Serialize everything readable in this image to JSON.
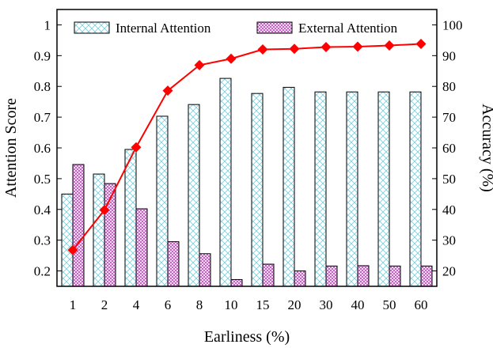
{
  "chart_data": {
    "type": "bar",
    "title": "",
    "xlabel": "Earliness (%)",
    "ylabel": "Attention Score",
    "y2label": "Accuracy (%)",
    "categories": [
      "1",
      "2",
      "4",
      "6",
      "8",
      "10",
      "15",
      "20",
      "30",
      "40",
      "50",
      "60"
    ],
    "ylim": [
      0.15,
      1.05
    ],
    "yticks": [
      0.2,
      0.3,
      0.4,
      0.5,
      0.6,
      0.7,
      0.8,
      0.9,
      1
    ],
    "ytick_labels": [
      "0.2",
      "0.3",
      "0.4",
      "0.5",
      "0.6",
      "0.7",
      "0.8",
      "0.9",
      "1"
    ],
    "y2lim": [
      15,
      105
    ],
    "y2ticks": [
      20,
      30,
      40,
      50,
      60,
      70,
      80,
      90,
      100
    ],
    "y2tick_labels": [
      "20",
      "30",
      "40",
      "50",
      "60",
      "70",
      "80",
      "90",
      "100"
    ],
    "legend_position": "top",
    "grid": false,
    "series": [
      {
        "name": "Internal Attention",
        "kind": "bar",
        "axis": "left",
        "pattern": "diagonal-cross",
        "color": "#7ecfe0",
        "values": [
          0.45,
          0.515,
          0.595,
          0.703,
          0.741,
          0.826,
          0.777,
          0.797,
          0.782,
          0.782,
          0.782,
          0.782
        ]
      },
      {
        "name": "External Attention",
        "kind": "bar",
        "axis": "left",
        "pattern": "fine-crosshatch",
        "color": "#c040c0",
        "values": [
          0.546,
          0.484,
          0.402,
          0.295,
          0.256,
          0.172,
          0.222,
          0.2,
          0.216,
          0.217,
          0.216,
          0.216
        ]
      },
      {
        "name": "",
        "kind": "line",
        "axis": "right",
        "marker": "diamond",
        "color": "#ff0000",
        "values": [
          26.8,
          39.8,
          60.2,
          78.6,
          86.9,
          89.0,
          92.0,
          92.2,
          92.8,
          92.9,
          93.3,
          93.8
        ]
      }
    ]
  }
}
